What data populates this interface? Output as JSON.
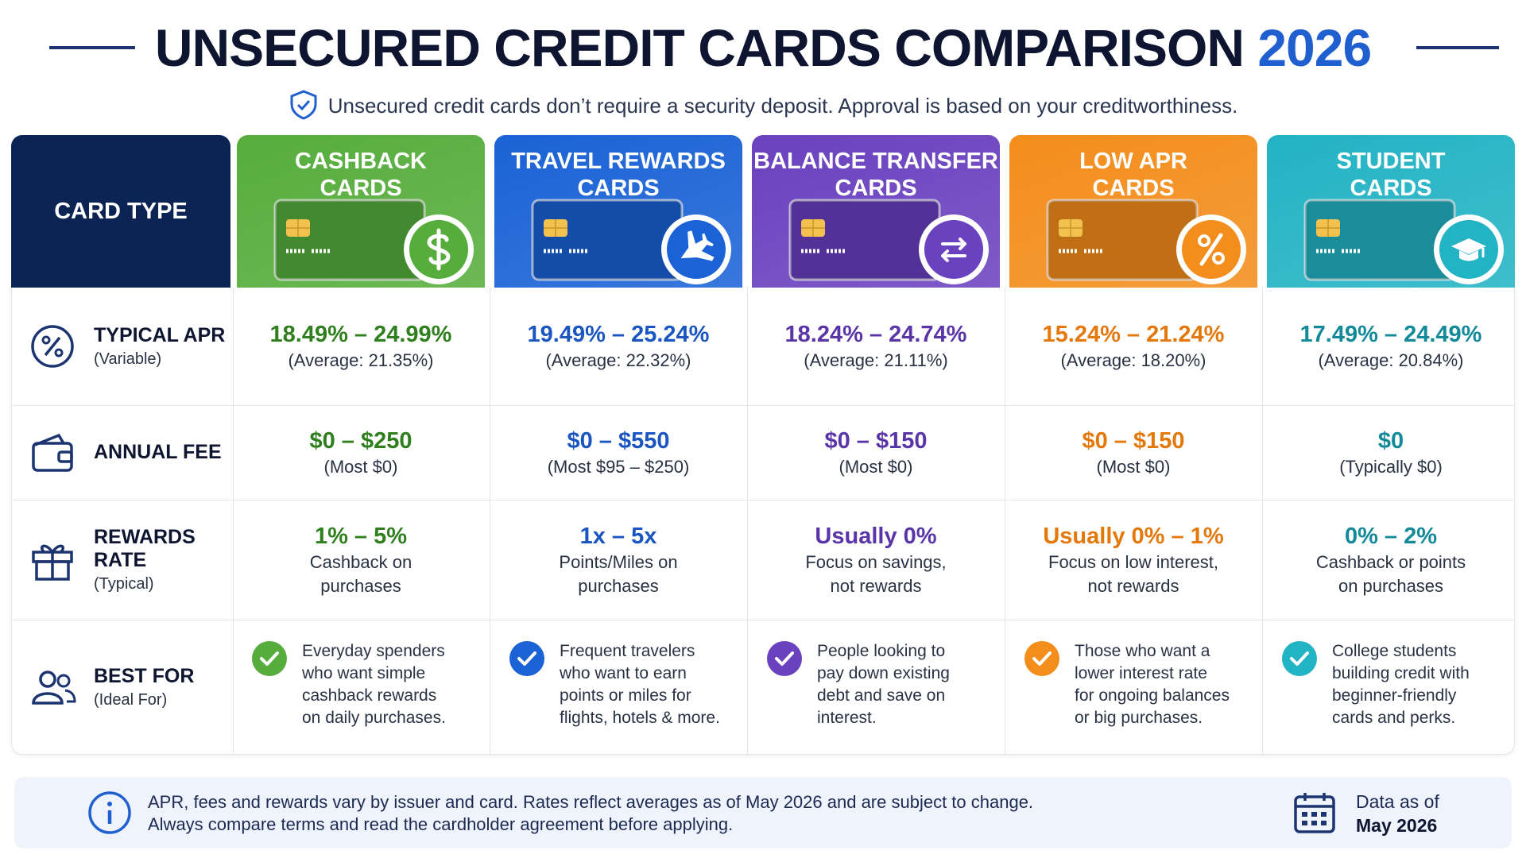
{
  "header": {
    "title": "UNSECURED CREDIT CARDS COMPARISON",
    "title_year": "2026",
    "subtitle": "Unsecured credit cards don’t require a security deposit. Approval is based on your creditworthiness."
  },
  "table": {
    "corner": "CARD TYPE",
    "columns": [
      {
        "lines": [
          "CASHBACK",
          "CARDS"
        ],
        "color": "#56ad3c",
        "text_color": "#2f7f1e"
      },
      {
        "lines": [
          "TRAVEL REWARDS",
          "CARDS"
        ],
        "color": "#1a62d6",
        "text_color": "#1a55c2"
      },
      {
        "lines": [
          "BALANCE TRANSFER",
          "CARDS"
        ],
        "color": "#6a41bf",
        "text_color": "#5a35a8"
      },
      {
        "lines": [
          "LOW APR",
          "CARDS"
        ],
        "color": "#f38d1b",
        "text_color": "#e4780a"
      },
      {
        "lines": [
          "STUDENT",
          "CARDS"
        ],
        "color": "#22b3c4",
        "text_color": "#128a9a"
      }
    ],
    "rows": [
      {
        "label": "TYPICAL APR",
        "sublabel": "(Variable)",
        "cells": [
          {
            "main": "18.49% – 24.99%",
            "sub": [
              "(Average: 21.35%)"
            ]
          },
          {
            "main": "19.49% – 25.24%",
            "sub": [
              "(Average: 22.32%)"
            ]
          },
          {
            "main": "18.24% – 24.74%",
            "sub": [
              "(Average: 21.11%)"
            ]
          },
          {
            "main": "15.24% – 21.24%",
            "sub": [
              "(Average: 18.20%)"
            ]
          },
          {
            "main": "17.49% – 24.49%",
            "sub": [
              "(Average: 20.84%)"
            ]
          }
        ]
      },
      {
        "label": "ANNUAL FEE",
        "cells": [
          {
            "main": "$0 – $250",
            "sub": [
              "(Most $0)"
            ]
          },
          {
            "main": "$0 – $550",
            "sub": [
              "(Most $95 – $250)"
            ]
          },
          {
            "main": "$0 – $150",
            "sub": [
              "(Most $0)"
            ]
          },
          {
            "main": "$0 – $150",
            "sub": [
              "(Most $0)"
            ]
          },
          {
            "main": "$0",
            "sub": [
              "(Typically $0)"
            ]
          }
        ]
      },
      {
        "label": "REWARDS RATE",
        "sublabel": "(Typical)",
        "cells": [
          {
            "main": "1% – 5%",
            "sub": [
              "Cashback on",
              "purchases"
            ]
          },
          {
            "main": "1x – 5x",
            "sub": [
              "Points/Miles on",
              "purchases"
            ]
          },
          {
            "main": "Usually 0%",
            "sub": [
              "Focus on savings,",
              "not rewards"
            ]
          },
          {
            "main": "Usually 0% – 1%",
            "sub": [
              "Focus on low interest,",
              "not rewards"
            ]
          },
          {
            "main": "0% – 2%",
            "sub": [
              "Cashback or points",
              "on purchases"
            ]
          }
        ]
      },
      {
        "label": "BEST FOR",
        "sublabel": "(Ideal For)",
        "cells": [
          {
            "lines": [
              "Everyday spenders",
              "who want simple",
              "cashback rewards",
              "on daily purchases."
            ]
          },
          {
            "lines": [
              "Frequent travelers",
              "who want to earn",
              "points or miles for",
              "flights, hotels & more."
            ]
          },
          {
            "lines": [
              "People looking to",
              "pay down existing",
              "debt and save on",
              "interest."
            ]
          },
          {
            "lines": [
              "Those who want a",
              "lower interest rate",
              "for ongoing balances",
              "or big purchases."
            ]
          },
          {
            "lines": [
              "College students",
              "building credit with",
              "beginner-friendly",
              "cards and perks."
            ]
          }
        ]
      }
    ]
  },
  "footer": {
    "note": [
      "APR, fees and rewards vary by issuer and card.  Rates reflect averages as of May 2026 and are subject to change.",
      "Always compare terms and read the cardholder agreement before applying."
    ],
    "data_as_of": [
      "Data as of",
      "May 2026"
    ]
  }
}
